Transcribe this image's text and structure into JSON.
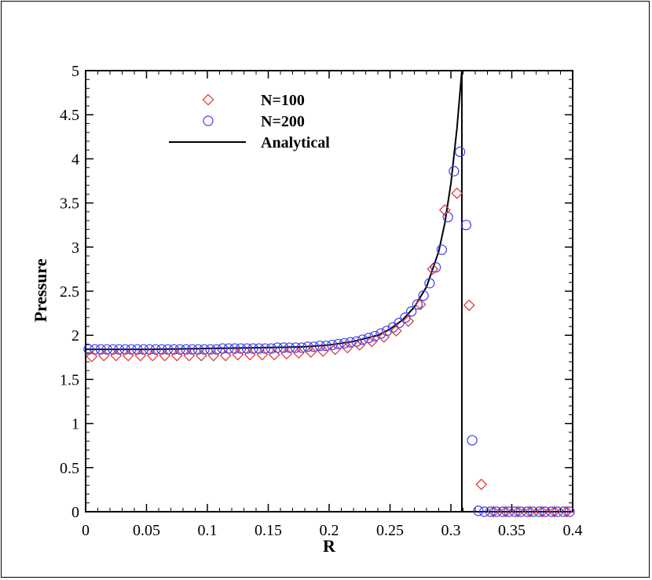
{
  "chart_data": {
    "type": "scatter",
    "xlabel": "R",
    "ylabel": "Pressure",
    "xlim": [
      0,
      0.4
    ],
    "ylim": [
      0,
      5
    ],
    "xticks": [
      "0",
      "0.05",
      "0.1",
      "0.15",
      "0.2",
      "0.25",
      "0.3",
      "0.35",
      "0.4"
    ],
    "yticks": [
      "0",
      "0.5",
      "1",
      "1.5",
      "2",
      "2.5",
      "3",
      "3.5",
      "4",
      "4.5",
      "5"
    ],
    "grid": false,
    "legend_position": "top-left",
    "series": [
      {
        "name": "N=100",
        "marker": "diamond",
        "color": "#e03030",
        "x": [
          0.005,
          0.015,
          0.025,
          0.035,
          0.045,
          0.055,
          0.065,
          0.075,
          0.085,
          0.095,
          0.105,
          0.115,
          0.125,
          0.135,
          0.145,
          0.155,
          0.165,
          0.175,
          0.185,
          0.195,
          0.205,
          0.215,
          0.225,
          0.235,
          0.245,
          0.255,
          0.265,
          0.275,
          0.285,
          0.295,
          0.305,
          0.315,
          0.325,
          0.335,
          0.345,
          0.355,
          0.365,
          0.375,
          0.385,
          0.395
        ],
        "y": [
          1.76,
          1.77,
          1.77,
          1.77,
          1.77,
          1.77,
          1.77,
          1.77,
          1.77,
          1.77,
          1.77,
          1.77,
          1.78,
          1.78,
          1.78,
          1.78,
          1.79,
          1.8,
          1.81,
          1.82,
          1.84,
          1.86,
          1.89,
          1.93,
          1.98,
          2.05,
          2.16,
          2.35,
          2.75,
          3.42,
          3.61,
          2.34,
          0.31,
          0.0,
          0.0,
          0.0,
          0.0,
          0.0,
          0.0,
          0.0
        ]
      },
      {
        "name": "N=200",
        "marker": "circle",
        "color": "#3c3cf0",
        "x": [
          0.0025,
          0.0075,
          0.0125,
          0.0175,
          0.0225,
          0.0275,
          0.0325,
          0.0375,
          0.0425,
          0.0475,
          0.0525,
          0.0575,
          0.0625,
          0.0675,
          0.0725,
          0.0775,
          0.0825,
          0.0875,
          0.0925,
          0.0975,
          0.1025,
          0.1075,
          0.1125,
          0.1175,
          0.1225,
          0.1275,
          0.1325,
          0.1375,
          0.1425,
          0.1475,
          0.1525,
          0.1575,
          0.1625,
          0.1675,
          0.1725,
          0.1775,
          0.1825,
          0.1875,
          0.1925,
          0.1975,
          0.2025,
          0.2075,
          0.2125,
          0.2175,
          0.2225,
          0.2275,
          0.2325,
          0.2375,
          0.2425,
          0.2475,
          0.2525,
          0.2575,
          0.2625,
          0.2675,
          0.2725,
          0.2775,
          0.2825,
          0.2875,
          0.2925,
          0.2975,
          0.3025,
          0.3075,
          0.3125,
          0.3175,
          0.3225,
          0.3275,
          0.3325,
          0.3375,
          0.3425,
          0.3475,
          0.3525,
          0.3575,
          0.3625,
          0.3675,
          0.3725,
          0.3775,
          0.3825,
          0.3875,
          0.3925,
          0.3975
        ],
        "y": [
          1.84,
          1.84,
          1.84,
          1.84,
          1.84,
          1.84,
          1.84,
          1.84,
          1.84,
          1.84,
          1.84,
          1.84,
          1.84,
          1.84,
          1.84,
          1.84,
          1.84,
          1.84,
          1.84,
          1.84,
          1.84,
          1.84,
          1.85,
          1.85,
          1.85,
          1.85,
          1.85,
          1.85,
          1.85,
          1.85,
          1.85,
          1.86,
          1.86,
          1.86,
          1.86,
          1.86,
          1.87,
          1.87,
          1.88,
          1.88,
          1.89,
          1.9,
          1.91,
          1.92,
          1.93,
          1.95,
          1.97,
          1.99,
          2.02,
          2.05,
          2.09,
          2.14,
          2.2,
          2.27,
          2.35,
          2.45,
          2.59,
          2.77,
          2.97,
          3.34,
          3.86,
          4.08,
          3.25,
          0.81,
          0.01,
          0.0,
          0.0,
          0.0,
          0.0,
          0.0,
          0.0,
          0.0,
          0.0,
          0.0,
          0.0,
          0.0,
          0.0,
          0.0,
          0.0,
          0.0
        ]
      },
      {
        "name": "Analytical",
        "marker": "line",
        "color": "#000000",
        "x": [
          0.0,
          0.05,
          0.1,
          0.15,
          0.18,
          0.2,
          0.22,
          0.24,
          0.25,
          0.26,
          0.27,
          0.28,
          0.29,
          0.295,
          0.3,
          0.305,
          0.309,
          0.309,
          0.4
        ],
        "y": [
          1.84,
          1.84,
          1.85,
          1.86,
          1.87,
          1.89,
          1.93,
          2.0,
          2.07,
          2.17,
          2.32,
          2.55,
          2.95,
          3.27,
          3.72,
          4.35,
          5.0,
          0.0,
          0.0
        ]
      }
    ]
  }
}
